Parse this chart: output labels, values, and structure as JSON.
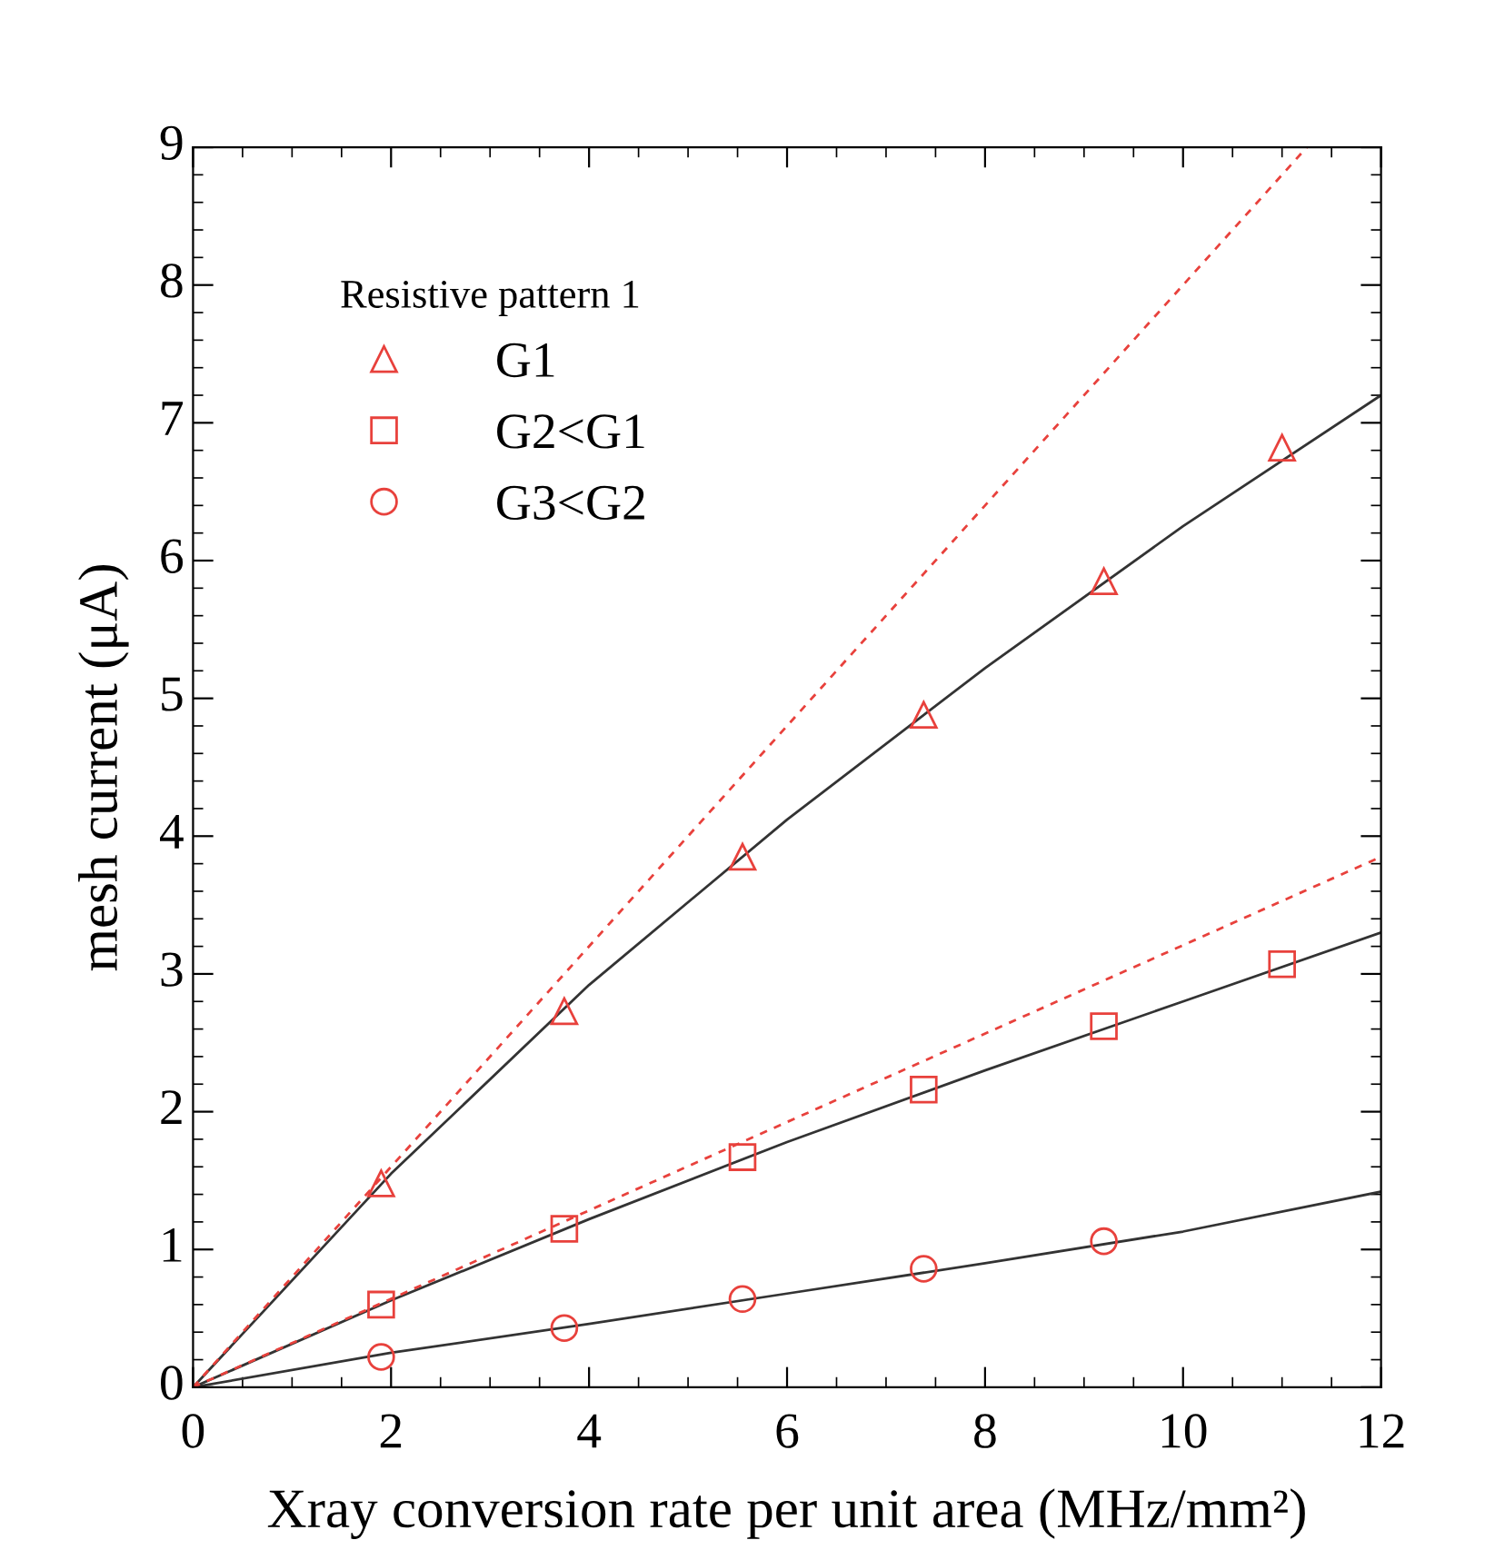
{
  "chart_data": {
    "type": "scatter",
    "xlabel": "Xray conversion rate per unit area (MHz/mm²)",
    "ylabel": "mesh current (μA)",
    "legend_title": "Resistive pattern 1",
    "legend": "top left",
    "grid": false,
    "xlim": [
      0,
      12
    ],
    "xticks": [
      0,
      2,
      4,
      6,
      8,
      10,
      12
    ],
    "ylim": [
      0,
      9
    ],
    "yticks": [
      0,
      1,
      2,
      3,
      4,
      5,
      6,
      7,
      8,
      9
    ],
    "series": [
      {
        "name": "G1",
        "marker": "triangle",
        "color": "#e8413c",
        "x": [
          1.9,
          3.75,
          5.55,
          7.38,
          9.2,
          11.0
        ],
        "values": [
          1.48,
          2.73,
          3.85,
          4.88,
          5.85,
          6.82
        ]
      },
      {
        "name": "G2<G1",
        "marker": "square",
        "color": "#e8413c",
        "x": [
          1.9,
          3.75,
          5.55,
          7.38,
          9.2,
          11.0
        ],
        "values": [
          0.6,
          1.15,
          1.67,
          2.16,
          2.62,
          3.07
        ]
      },
      {
        "name": "G3<G2",
        "marker": "circle",
        "color": "#e8413c",
        "x": [
          1.9,
          3.75,
          5.55,
          7.38,
          9.2
        ],
        "values": [
          0.22,
          0.43,
          0.64,
          0.86,
          1.06
        ]
      },
      {
        "type": "line",
        "line_style": "solid",
        "color": "#333333",
        "x": [
          0,
          2,
          4,
          6,
          8,
          10,
          12
        ],
        "values": [
          0,
          1.55,
          2.92,
          4.12,
          5.22,
          6.25,
          7.2
        ]
      },
      {
        "type": "line",
        "line_style": "solid",
        "color": "#333333",
        "x": [
          0,
          2,
          4,
          6,
          8,
          10,
          12
        ],
        "values": [
          0,
          0.63,
          1.22,
          1.78,
          2.3,
          2.8,
          3.3
        ]
      },
      {
        "type": "line",
        "line_style": "solid",
        "color": "#333333",
        "x": [
          0,
          2,
          4,
          6,
          8,
          10,
          12
        ],
        "values": [
          0,
          0.25,
          0.46,
          0.68,
          0.9,
          1.13,
          1.42
        ]
      },
      {
        "type": "line",
        "line_style": "dashed",
        "color": "#e8413c",
        "x": [
          0,
          11.25
        ],
        "values": [
          0,
          9
        ]
      },
      {
        "type": "line",
        "line_style": "dashed",
        "color": "#e8413c",
        "x": [
          0,
          12
        ],
        "values": [
          0,
          3.85
        ]
      }
    ]
  }
}
